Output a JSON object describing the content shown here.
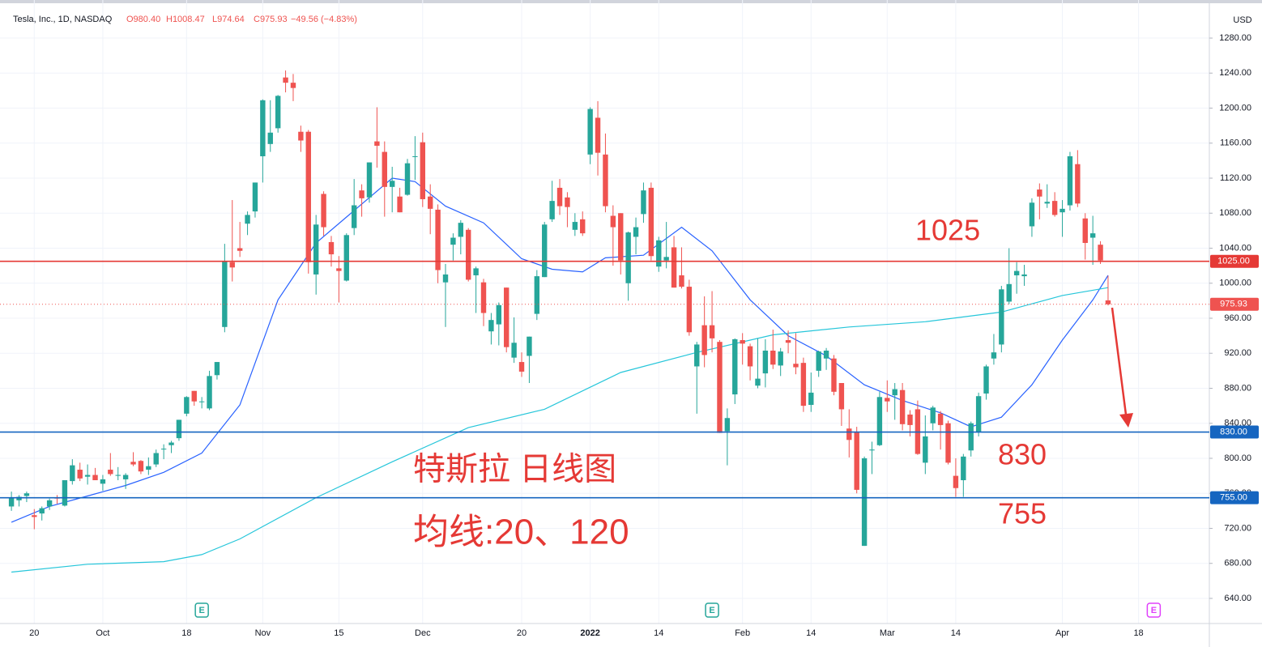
{
  "chart_data": {
    "type": "candlestick",
    "title": "Tesla, Inc., 1D, NASDAQ",
    "quote": [
      "O980.40",
      "H1008.47",
      "L974.64",
      "C975.93",
      "−49.56 (−4.83%)"
    ],
    "currency": "USD",
    "up_color": "#26a69a",
    "down_color": "#ef5350",
    "open": [
      745,
      752,
      757,
      735,
      737,
      745,
      755,
      746,
      774,
      787,
      779,
      781,
      771,
      787,
      780,
      776,
      796,
      797,
      787,
      793,
      811,
      815,
      823,
      851,
      877,
      865,
      857,
      895,
      950,
      1024,
      1040,
      1068,
      1082,
      1145,
      1159,
      1177,
      1235,
      1229,
      1173,
      1173,
      1010,
      1102,
      1047,
      1017,
      1003,
      1063,
      1106,
      1098,
      1162,
      1150,
      1110,
      1099,
      1101,
      1145,
      1161,
      1099,
      1084,
      1001,
      1044,
      1053,
      1061,
      1009,
      1001,
      945,
      953,
      995,
      915,
      910,
      917,
      965,
      1007,
      1073,
      1109,
      1098,
      1061,
      1073,
      1147,
      1189,
      1147,
      1077,
      1080,
      1000,
      1053,
      1079,
      1109,
      1019,
      1026,
      1041,
      1009,
      996,
      905,
      952,
      952,
      933,
      831,
      873,
      935,
      928,
      883,
      897,
      923,
      906,
      935,
      908,
      909,
      861,
      900,
      914,
      914,
      886,
      834,
      830,
      700,
      809,
      815,
      869,
      872,
      878,
      850,
      856,
      795,
      840,
      851,
      840,
      780,
      775,
      809,
      830,
      874,
      914,
      930,
      979,
      1009,
      1008,
      1065,
      1107,
      1091,
      1094,
      1081,
      1089,
      1136,
      1074,
      1052,
      1044,
      980.4
    ],
    "high": [
      762,
      758,
      762,
      742,
      745,
      754,
      758,
      775,
      799,
      795,
      793,
      789,
      781,
      806,
      790,
      783,
      807,
      798,
      801,
      810,
      816,
      820,
      844,
      871,
      877,
      870,
      900,
      910,
      1045,
      1095,
      1070,
      1082,
      1115,
      1210,
      1209,
      1215,
      1243,
      1239,
      1180,
      1175,
      1078,
      1105,
      1054,
      1031,
      1057,
      1119,
      1113,
      1138,
      1201,
      1162,
      1133,
      1109,
      1142,
      1168,
      1172,
      1113,
      1090,
      1022,
      1057,
      1072,
      1063,
      1019,
      1005,
      966,
      978,
      995,
      961,
      921,
      939,
      1015,
      1070,
      1117,
      1119,
      1104,
      1080,
      1082,
      1201,
      1208,
      1171,
      1089,
      1080,
      1059,
      1075,
      1115,
      1115,
      1053,
      1070,
      1054,
      1041,
      1004,
      933,
      985,
      991,
      935,
      857,
      937,
      943,
      931,
      937,
      936,
      947,
      926,
      946,
      943,
      915,
      898,
      923,
      926,
      918,
      886,
      856,
      836,
      802,
      819,
      876,
      889,
      886,
      886,
      855,
      866,
      849,
      860,
      854,
      843,
      800,
      805,
      842,
      875,
      907,
      942,
      997,
      1040,
      1024,
      1021,
      1097,
      1114,
      1113,
      1104,
      1095,
      1150,
      1152,
      1080,
      1077,
      1048,
      1008.47
    ],
    "low": [
      740,
      745,
      750,
      719,
      729,
      741,
      748,
      745,
      770,
      774,
      770,
      775,
      763,
      780,
      775,
      765,
      791,
      782,
      781,
      790,
      799,
      806,
      820,
      848,
      860,
      857,
      855,
      890,
      944,
      1002,
      1030,
      1055,
      1075,
      1115,
      1150,
      1172,
      1218,
      1208,
      1150,
      1011,
      987,
      1054,
      1019,
      978,
      1002,
      1055,
      1076,
      1092,
      1132,
      1076,
      1081,
      1081,
      1100,
      1118,
      1087,
      1056,
      1000,
      950,
      1026,
      1033,
      1002,
      966,
      951,
      930,
      929,
      921,
      909,
      893,
      886,
      958,
      1007,
      1070,
      1078,
      1064,
      1054,
      1054,
      1136,
      1123,
      1081,
      1020,
      1010,
      980,
      1033,
      1069,
      1026,
      1013,
      1017,
      995,
      994,
      940,
      851,
      904,
      921,
      829,
      792,
      862,
      907,
      889,
      880,
      881,
      902,
      894,
      920,
      896,
      853,
      853,
      893,
      901,
      872,
      837,
      801,
      760,
      700,
      782,
      814,
      853,
      844,
      832,
      825,
      804,
      782,
      832,
      810,
      793,
      756,
      756,
      802,
      825,
      867,
      907,
      921,
      976,
      988,
      997,
      1053,
      1073,
      1086,
      1076,
      1053,
      1083,
      1087,
      1027,
      1021,
      1022,
      974.64
    ],
    "close": [
      755,
      756,
      760,
      733,
      743,
      752,
      754,
      775,
      792,
      777,
      781,
      775,
      776,
      782,
      781,
      781,
      793,
      785,
      791,
      806,
      811,
      818,
      844,
      870,
      865,
      865,
      894,
      910,
      1025,
      1018,
      1037,
      1078,
      1115,
      1209,
      1172,
      1214,
      1229,
      1223,
      1163,
      1024,
      1067,
      1064,
      1033,
      1014,
      1055,
      1089,
      1097,
      1138,
      1157,
      1110,
      1117,
      1081,
      1137,
      1145,
      1096,
      1085,
      1015,
      1010,
      1052,
      1069,
      1004,
      1017,
      966,
      958,
      975,
      927,
      932,
      899,
      939,
      1008,
      1067,
      1094,
      1088,
      1087,
      1070,
      1057,
      1199,
      1149,
      1088,
      1064,
      1026,
      1058,
      1064,
      1106,
      1031,
      1049,
      1030,
      995,
      996,
      944,
      930,
      918,
      937,
      829,
      846,
      936,
      931,
      905,
      891,
      923,
      907,
      922,
      932,
      904,
      860,
      875,
      922,
      923,
      876,
      856,
      821,
      764,
      800,
      810,
      870,
      865,
      879,
      839,
      838,
      805,
      825,
      858,
      838,
      795,
      766,
      802,
      840,
      871,
      905,
      921,
      993,
      999,
      1014,
      1010,
      1092,
      1099,
      1093,
      1078,
      1085,
      1145,
      1091,
      1046,
      1057,
      1026,
      975.93
    ],
    "ma_lines": [
      {
        "color": "#2962ff",
        "x": [
          0,
          5,
          10,
          15,
          20,
          25,
          30,
          35,
          40,
          45,
          50,
          53,
          57,
          62,
          67,
          71,
          75,
          78,
          83,
          88,
          92,
          97,
          102,
          107,
          112,
          117,
          122,
          126,
          130,
          134,
          138,
          142,
          144
        ],
        "values": [
          727,
          745,
          757,
          769,
          784,
          806,
          861,
          981,
          1046,
          1083,
          1120,
          1116,
          1088,
          1069,
          1028,
          1016,
          1013,
          1029,
          1032,
          1064,
          1037,
          981,
          940,
          917,
          884,
          866,
          852,
          836,
          847,
          884,
          935,
          981,
          1009
        ]
      },
      {
        "color": "#26c6da",
        "x": [
          0,
          10,
          20,
          25,
          30,
          40,
          50,
          60,
          70,
          80,
          90,
          100,
          110,
          120,
          130,
          138,
          144
        ],
        "values": [
          670,
          679,
          682,
          690,
          708,
          755,
          796,
          835,
          856,
          898,
          921,
          941,
          950,
          956,
          967,
          986,
          995
        ]
      }
    ],
    "levels": [
      {
        "value": 1025,
        "label": "1025.00",
        "color": "#e53935"
      },
      {
        "value": 830,
        "label": "830.00",
        "color": "#1565c0"
      },
      {
        "value": 755,
        "label": "755.00",
        "color": "#1565c0"
      }
    ],
    "last_price": {
      "value": 975.93,
      "label": "975.93",
      "color": "#ef5350"
    },
    "annotations": [
      "特斯拉 日线图",
      "均线:20、120",
      "1025",
      "830",
      "755"
    ],
    "earnings": [
      {
        "x": 25,
        "label": "E",
        "color": "#26a69a"
      },
      {
        "x": 92,
        "label": "E",
        "color": "#26a69a"
      },
      {
        "x": 150,
        "label": "E",
        "color": "#e040fb"
      }
    ],
    "xlim": [
      -1.5,
      157.3
    ],
    "xticks": [
      {
        "value": 3,
        "label": "20"
      },
      {
        "value": 12,
        "label": "Oct"
      },
      {
        "value": 23,
        "label": "18"
      },
      {
        "value": 33,
        "label": "Nov"
      },
      {
        "value": 43,
        "label": "15"
      },
      {
        "value": 54,
        "label": "Dec"
      },
      {
        "value": 67,
        "label": "20"
      },
      {
        "value": 76,
        "label": "2022"
      },
      {
        "value": 85,
        "label": "14"
      },
      {
        "value": 96,
        "label": "Feb"
      },
      {
        "value": 105,
        "label": "14"
      },
      {
        "value": 115,
        "label": "Mar"
      },
      {
        "value": 124,
        "label": "14"
      },
      {
        "value": 138,
        "label": "Apr"
      },
      {
        "value": 148,
        "label": "18"
      }
    ],
    "ylim": [
      611.3,
      1323.5
    ],
    "yticks": [
      {
        "value": 640,
        "label": "640.00"
      },
      {
        "value": 680,
        "label": "680.00"
      },
      {
        "value": 720,
        "label": "720.00"
      },
      {
        "value": 760,
        "label": "760.00"
      },
      {
        "value": 800,
        "label": "800.00"
      },
      {
        "value": 840,
        "label": "840.00"
      },
      {
        "value": 880,
        "label": "880.00"
      },
      {
        "value": 920,
        "label": "920.00"
      },
      {
        "value": 960,
        "label": "960.00"
      },
      {
        "value": 1000,
        "label": "1000.00"
      },
      {
        "value": 1040,
        "label": "1040.00"
      },
      {
        "value": 1080,
        "label": "1080.00"
      },
      {
        "value": 1120,
        "label": "1120.00"
      },
      {
        "value": 1160,
        "label": "1160.00"
      },
      {
        "value": 1200,
        "label": "1200.00"
      },
      {
        "value": 1240,
        "label": "1240.00"
      },
      {
        "value": 1280,
        "label": "1280.00"
      }
    ],
    "grid": true
  }
}
